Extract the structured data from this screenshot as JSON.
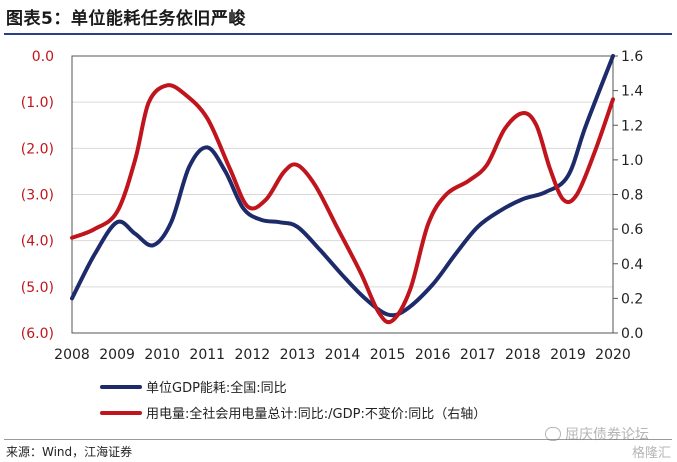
{
  "title": "图表5：单位能耗任务依旧严峻",
  "source": "来源：Wind，江海证券",
  "watermark": "屈庆债券论坛",
  "watermark_logo": "格隆汇",
  "colors": {
    "series1": "#1d2b6b",
    "series2": "#c0151c",
    "left_axis_text": "#c0151c",
    "rule": "#2a3e8c"
  },
  "chart_data": {
    "type": "line",
    "x": [
      2008,
      2009,
      2010,
      2011,
      2012,
      2013,
      2014,
      2015,
      2016,
      2017,
      2018,
      2019,
      2020
    ],
    "x_ticks": [
      "2008",
      "2009",
      "2010",
      "2011",
      "2012",
      "2013",
      "2014",
      "2015",
      "2016",
      "2017",
      "2018",
      "2019",
      "2020"
    ],
    "left_ticks": [
      "0.0",
      "(1.0)",
      "(2.0)",
      "(3.0)",
      "(4.0)",
      "(5.0)",
      "(6.0)"
    ],
    "left_tick_values": [
      0,
      -1,
      -2,
      -3,
      -4,
      -5,
      -6
    ],
    "right_ticks": [
      "1.6",
      "1.4",
      "1.2",
      "1.0",
      "0.8",
      "0.6",
      "0.4",
      "0.2",
      "0.0"
    ],
    "right_tick_values": [
      1.6,
      1.4,
      1.2,
      1.0,
      0.8,
      0.6,
      0.4,
      0.2,
      0.0
    ],
    "ylim_left": [
      -6,
      0
    ],
    "ylim_right": [
      0,
      1.6
    ],
    "series": [
      {
        "name": "单位GDP能耗:全国:同比",
        "axis": "left",
        "points": [
          [
            2008,
            -5.25
          ],
          [
            2008.5,
            -4.3
          ],
          [
            2009,
            -3.6
          ],
          [
            2009.4,
            -3.85
          ],
          [
            2009.8,
            -4.1
          ],
          [
            2010.2,
            -3.6
          ],
          [
            2010.6,
            -2.4
          ],
          [
            2011,
            -1.98
          ],
          [
            2011.4,
            -2.5
          ],
          [
            2011.8,
            -3.3
          ],
          [
            2012.2,
            -3.55
          ],
          [
            2012.6,
            -3.6
          ],
          [
            2013,
            -3.7
          ],
          [
            2013.5,
            -4.2
          ],
          [
            2014,
            -4.75
          ],
          [
            2014.5,
            -5.25
          ],
          [
            2015,
            -5.6
          ],
          [
            2015.4,
            -5.5
          ],
          [
            2016,
            -4.95
          ],
          [
            2016.5,
            -4.3
          ],
          [
            2017,
            -3.7
          ],
          [
            2017.5,
            -3.35
          ],
          [
            2018,
            -3.1
          ],
          [
            2018.5,
            -2.95
          ],
          [
            2019,
            -2.6
          ],
          [
            2019.4,
            -1.5
          ],
          [
            2020,
            0.0
          ]
        ]
      },
      {
        "name": "用电量:全社会用电量总计:同比:/GDP:不变价:同比（右轴）",
        "axis": "right",
        "points": [
          [
            2008,
            0.55
          ],
          [
            2008.5,
            0.6
          ],
          [
            2009,
            0.7
          ],
          [
            2009.4,
            1.0
          ],
          [
            2009.7,
            1.33
          ],
          [
            2010.1,
            1.43
          ],
          [
            2010.5,
            1.38
          ],
          [
            2011,
            1.24
          ],
          [
            2011.5,
            0.95
          ],
          [
            2011.9,
            0.73
          ],
          [
            2012.3,
            0.77
          ],
          [
            2012.7,
            0.93
          ],
          [
            2013,
            0.97
          ],
          [
            2013.4,
            0.85
          ],
          [
            2013.9,
            0.6
          ],
          [
            2014.4,
            0.35
          ],
          [
            2014.8,
            0.12
          ],
          [
            2015.1,
            0.07
          ],
          [
            2015.5,
            0.25
          ],
          [
            2015.9,
            0.63
          ],
          [
            2016.3,
            0.8
          ],
          [
            2016.8,
            0.88
          ],
          [
            2017.2,
            0.97
          ],
          [
            2017.6,
            1.18
          ],
          [
            2018,
            1.27
          ],
          [
            2018.3,
            1.2
          ],
          [
            2018.6,
            0.95
          ],
          [
            2018.9,
            0.77
          ],
          [
            2019.2,
            0.8
          ],
          [
            2019.6,
            1.05
          ],
          [
            2020,
            1.35
          ]
        ]
      }
    ]
  }
}
